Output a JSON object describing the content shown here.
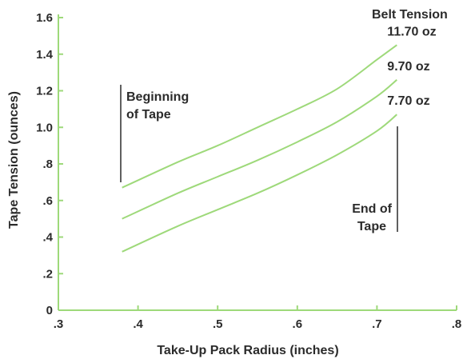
{
  "chart_data": {
    "type": "line",
    "xlabel": "Take-Up Pack Radius (inches)",
    "ylabel": "Tape Tension (ounces)",
    "xlim": [
      0.3,
      0.8
    ],
    "ylim": [
      0,
      1.6
    ],
    "x_ticks": [
      {
        "value": 0.3,
        "label": ".3"
      },
      {
        "value": 0.4,
        "label": ".4"
      },
      {
        "value": 0.5,
        "label": ".5"
      },
      {
        "value": 0.6,
        "label": ".6"
      },
      {
        "value": 0.7,
        "label": ".7"
      },
      {
        "value": 0.8,
        "label": ".8"
      }
    ],
    "y_ticks": [
      {
        "value": 0,
        "label": "0"
      },
      {
        "value": 0.2,
        "label": ".2"
      },
      {
        "value": 0.4,
        "label": ".4"
      },
      {
        "value": 0.6,
        "label": ".6"
      },
      {
        "value": 0.8,
        "label": ".8"
      },
      {
        "value": 1.0,
        "label": "1.0"
      },
      {
        "value": 1.2,
        "label": "1.2"
      },
      {
        "value": 1.4,
        "label": "1.4"
      },
      {
        "value": 1.6,
        "label": "1.6"
      }
    ],
    "legend_title": "Belt Tension",
    "line_color": "#9ed97a",
    "axis_color": "#9ed97a",
    "series": [
      {
        "name": "11.70 oz",
        "x": [
          0.38,
          0.45,
          0.5,
          0.55,
          0.6,
          0.65,
          0.7,
          0.725
        ],
        "y": [
          0.67,
          0.81,
          0.9,
          1.0,
          1.1,
          1.21,
          1.37,
          1.45
        ]
      },
      {
        "name": "9.70 oz",
        "x": [
          0.38,
          0.45,
          0.5,
          0.55,
          0.6,
          0.65,
          0.7,
          0.725
        ],
        "y": [
          0.5,
          0.64,
          0.73,
          0.82,
          0.92,
          1.03,
          1.17,
          1.26
        ]
      },
      {
        "name": "7.70 oz",
        "x": [
          0.38,
          0.45,
          0.5,
          0.55,
          0.6,
          0.65,
          0.7,
          0.725
        ],
        "y": [
          0.32,
          0.46,
          0.55,
          0.64,
          0.74,
          0.85,
          0.98,
          1.07
        ]
      }
    ],
    "annotations": [
      {
        "text_line1": "Beginning",
        "text_line2": "of Tape"
      },
      {
        "text_line1": "End of",
        "text_line2": "Tape"
      }
    ]
  }
}
